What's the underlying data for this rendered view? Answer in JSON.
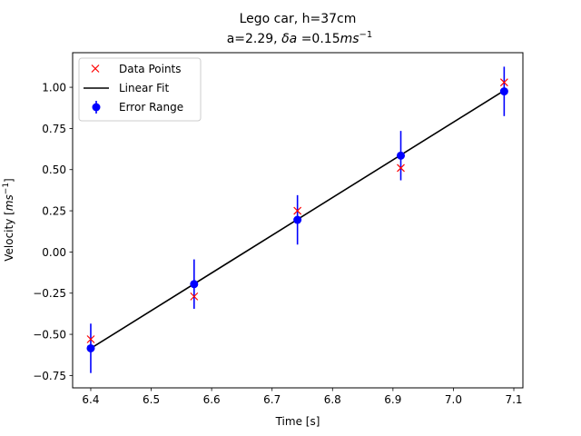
{
  "chart_data": {
    "type": "scatter",
    "title": "Lego car, h=37cm",
    "subtitle": {
      "a_text": "a=2.29, ",
      "delta": "δa",
      "eq": " =0.15",
      "unit": "ms",
      "exp": "−1"
    },
    "xlabel": "Time [s]",
    "ylabel": {
      "prefix": "Velocity [",
      "unit": "ms",
      "exp": "−1",
      "suffix": "]"
    },
    "xlim": [
      6.37,
      7.115
    ],
    "ylim": [
      -0.825,
      1.21
    ],
    "xticks": [
      6.4,
      6.5,
      6.6,
      6.7,
      6.8,
      6.9,
      7.0,
      7.1
    ],
    "xtick_labels": [
      "6.4",
      "6.5",
      "6.6",
      "6.7",
      "6.8",
      "6.9",
      "7.0",
      "7.1"
    ],
    "yticks": [
      -0.75,
      -0.5,
      -0.25,
      0.0,
      0.25,
      0.5,
      0.75,
      1.0
    ],
    "ytick_labels": [
      "−0.75",
      "−0.50",
      "−0.25",
      "0.00",
      "0.25",
      "0.50",
      "0.75",
      "1.00"
    ],
    "legend_position": "upper-left",
    "grid": false,
    "series": [
      {
        "name": "Data Points",
        "kind": "marker-x",
        "color": "#ff0000",
        "x": [
          6.4,
          6.571,
          6.742,
          6.913,
          7.084
        ],
        "y": [
          -0.53,
          -0.27,
          0.25,
          0.51,
          1.03
        ]
      },
      {
        "name": "Linear Fit",
        "kind": "line",
        "color": "#000000",
        "x": [
          6.4,
          7.084
        ],
        "y": [
          -0.585,
          0.98
        ]
      },
      {
        "name": "Error Range",
        "kind": "errorbar",
        "color": "#0000ff",
        "x": [
          6.4,
          6.571,
          6.742,
          6.913,
          7.084
        ],
        "y": [
          -0.585,
          -0.195,
          0.195,
          0.585,
          0.975
        ],
        "yerr": [
          0.15,
          0.15,
          0.15,
          0.15,
          0.15
        ]
      }
    ]
  }
}
